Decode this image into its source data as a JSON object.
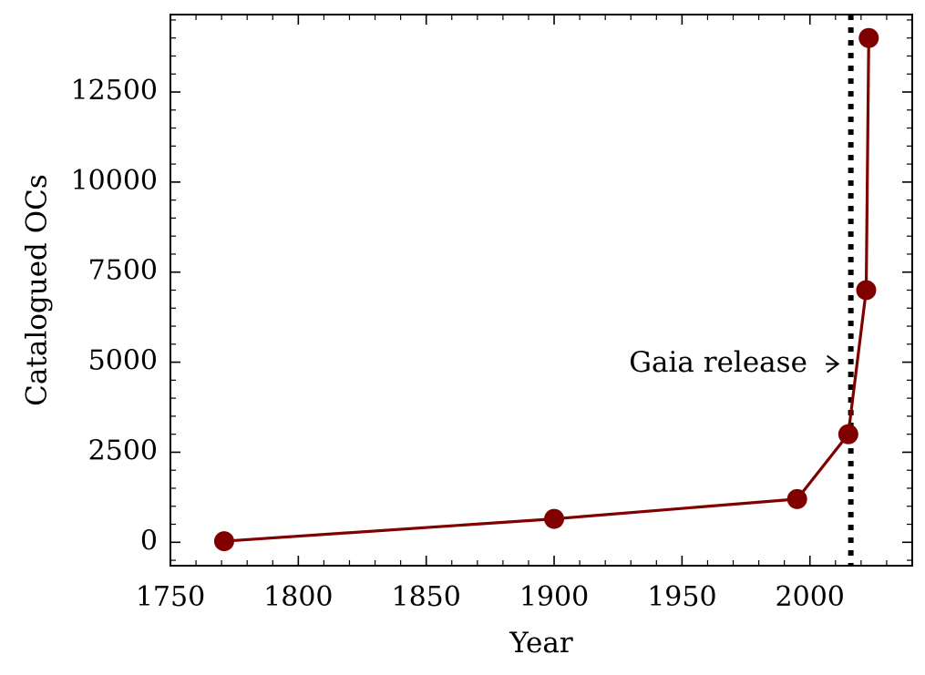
{
  "chart_data": {
    "type": "line",
    "title": "",
    "xlabel": "Year",
    "ylabel": "Catalogued OCs",
    "xlim": [
      1750,
      2040
    ],
    "ylim": [
      -650,
      14650
    ],
    "x_ticks": [
      1750,
      1800,
      1850,
      1900,
      1950,
      2000
    ],
    "y_ticks": [
      0,
      2500,
      5000,
      7500,
      10000,
      12500
    ],
    "x_minor_step": 10,
    "y_minor_step": 500,
    "grid": false,
    "legend": "none",
    "series": [
      {
        "x": [
          1771,
          1900,
          1995,
          2015,
          2022,
          2023
        ],
        "y": [
          30,
          650,
          1200,
          3000,
          7000,
          14000
        ],
        "color": "#800000",
        "marker": "circle"
      }
    ],
    "vline": {
      "x": 2016,
      "style": "dotted",
      "color": "#000000"
    },
    "annotation": {
      "text": "Gaia release",
      "arrow_to": [
        2016,
        4950
      ],
      "arrow_from": [
        2009,
        4950
      ],
      "text_anchor_x": 2004,
      "text_y": 4950
    }
  }
}
